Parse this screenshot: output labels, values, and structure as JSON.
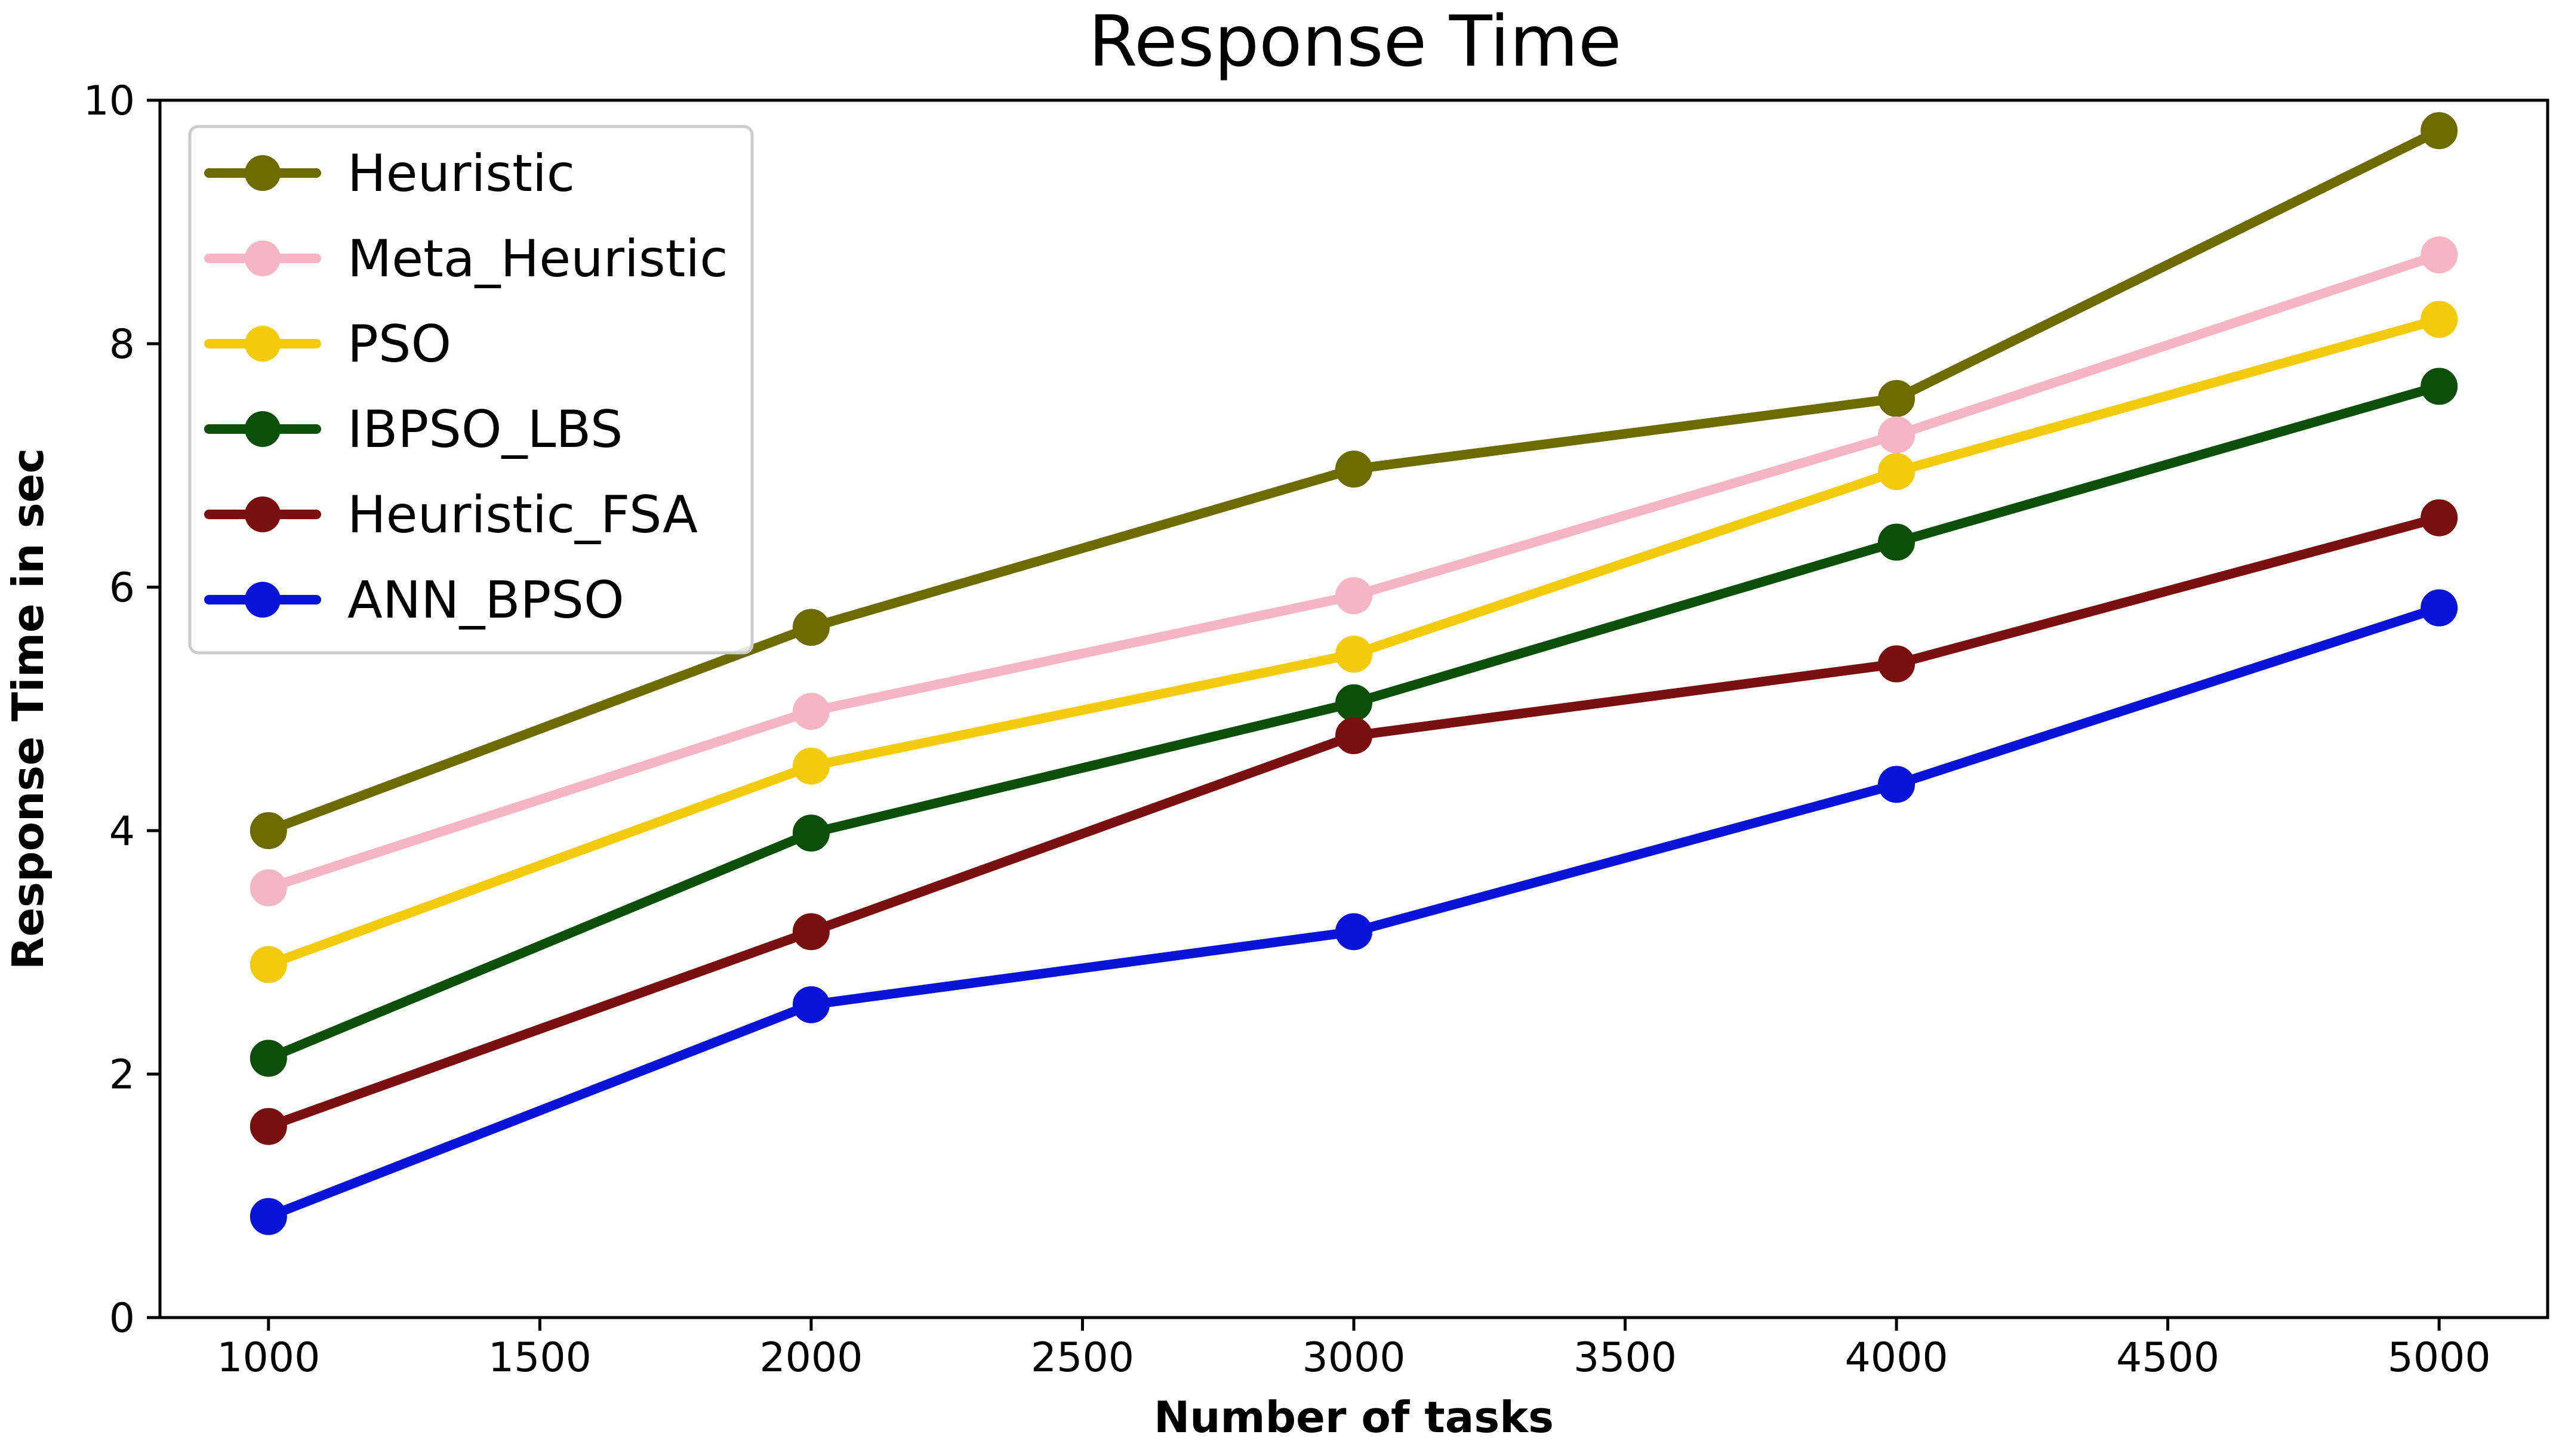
{
  "chart_data": {
    "type": "line",
    "title": "Response Time",
    "xlabel": "Number of tasks",
    "ylabel": "Response Time in sec",
    "x": [
      1000,
      2000,
      3000,
      4000,
      5000
    ],
    "xlim": [
      800,
      5200
    ],
    "ylim": [
      0,
      10
    ],
    "x_ticks": [
      1000,
      1500,
      2000,
      2500,
      3000,
      3500,
      4000,
      4500,
      5000
    ],
    "y_ticks": [
      0,
      2,
      4,
      6,
      8,
      10
    ],
    "grid": false,
    "legend_position": "top-left",
    "series": [
      {
        "name": "Heuristic",
        "color": "#6b6b00",
        "values": [
          4.0,
          5.67,
          6.97,
          7.55,
          9.75
        ]
      },
      {
        "name": "Meta_Heuristic",
        "color": "#f4b6c2",
        "values": [
          3.53,
          4.98,
          5.93,
          7.25,
          8.73
        ]
      },
      {
        "name": "PSO",
        "color": "#f2cc0c",
        "values": [
          2.9,
          4.53,
          5.45,
          6.95,
          8.2
        ]
      },
      {
        "name": "IBPSO_LBS",
        "color": "#0b4f0b",
        "values": [
          2.13,
          3.98,
          5.05,
          6.37,
          7.65
        ]
      },
      {
        "name": "Heuristic_FSA",
        "color": "#7a0f0f",
        "values": [
          1.57,
          3.17,
          4.78,
          5.37,
          6.57
        ]
      },
      {
        "name": "ANN_BPSO",
        "color": "#0a14d8",
        "values": [
          0.83,
          2.57,
          3.17,
          4.38,
          5.83
        ]
      }
    ]
  }
}
